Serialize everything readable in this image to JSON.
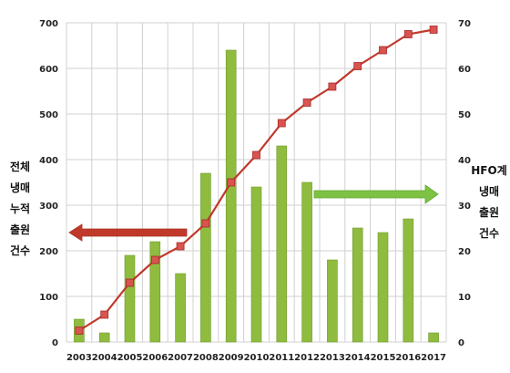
{
  "chart_data": {
    "type": "bar+line",
    "categories": [
      "2003",
      "2004",
      "2005",
      "2006",
      "2007",
      "2008",
      "2009",
      "2010",
      "2011",
      "2012",
      "2013",
      "2014",
      "2015",
      "2016",
      "2017"
    ],
    "series": [
      {
        "type": "line",
        "axis": "left",
        "color": "#c0392b",
        "marker_color": "#d9534f",
        "values": [
          25,
          60,
          130,
          180,
          210,
          260,
          350,
          410,
          480,
          525,
          560,
          605,
          640,
          675,
          685
        ]
      },
      {
        "type": "bar",
        "axis": "right",
        "color": "#8fbc3f",
        "values": [
          5,
          2,
          19,
          22,
          15,
          37,
          64,
          34,
          43,
          35,
          18,
          25,
          24,
          27,
          2
        ]
      }
    ],
    "left_axis": {
      "label_lines": [
        "전체",
        "냉매",
        "누적",
        "출원",
        "건수"
      ],
      "ylim": [
        0,
        700
      ],
      "ticks": [
        0,
        100,
        200,
        300,
        400,
        500,
        600,
        700
      ]
    },
    "right_axis": {
      "label_lines": [
        "HFO계",
        "냉매",
        "출원",
        "건수"
      ],
      "ylim": [
        0,
        70
      ],
      "ticks": [
        0,
        10,
        20,
        30,
        40,
        50,
        60,
        70
      ]
    },
    "grid": true,
    "annotations": [
      {
        "type": "arrow",
        "direction": "left",
        "color": "#c0392b",
        "points_to": "left-axis"
      },
      {
        "type": "arrow",
        "direction": "right",
        "color": "#7dc242",
        "points_to": "right-axis"
      }
    ]
  }
}
